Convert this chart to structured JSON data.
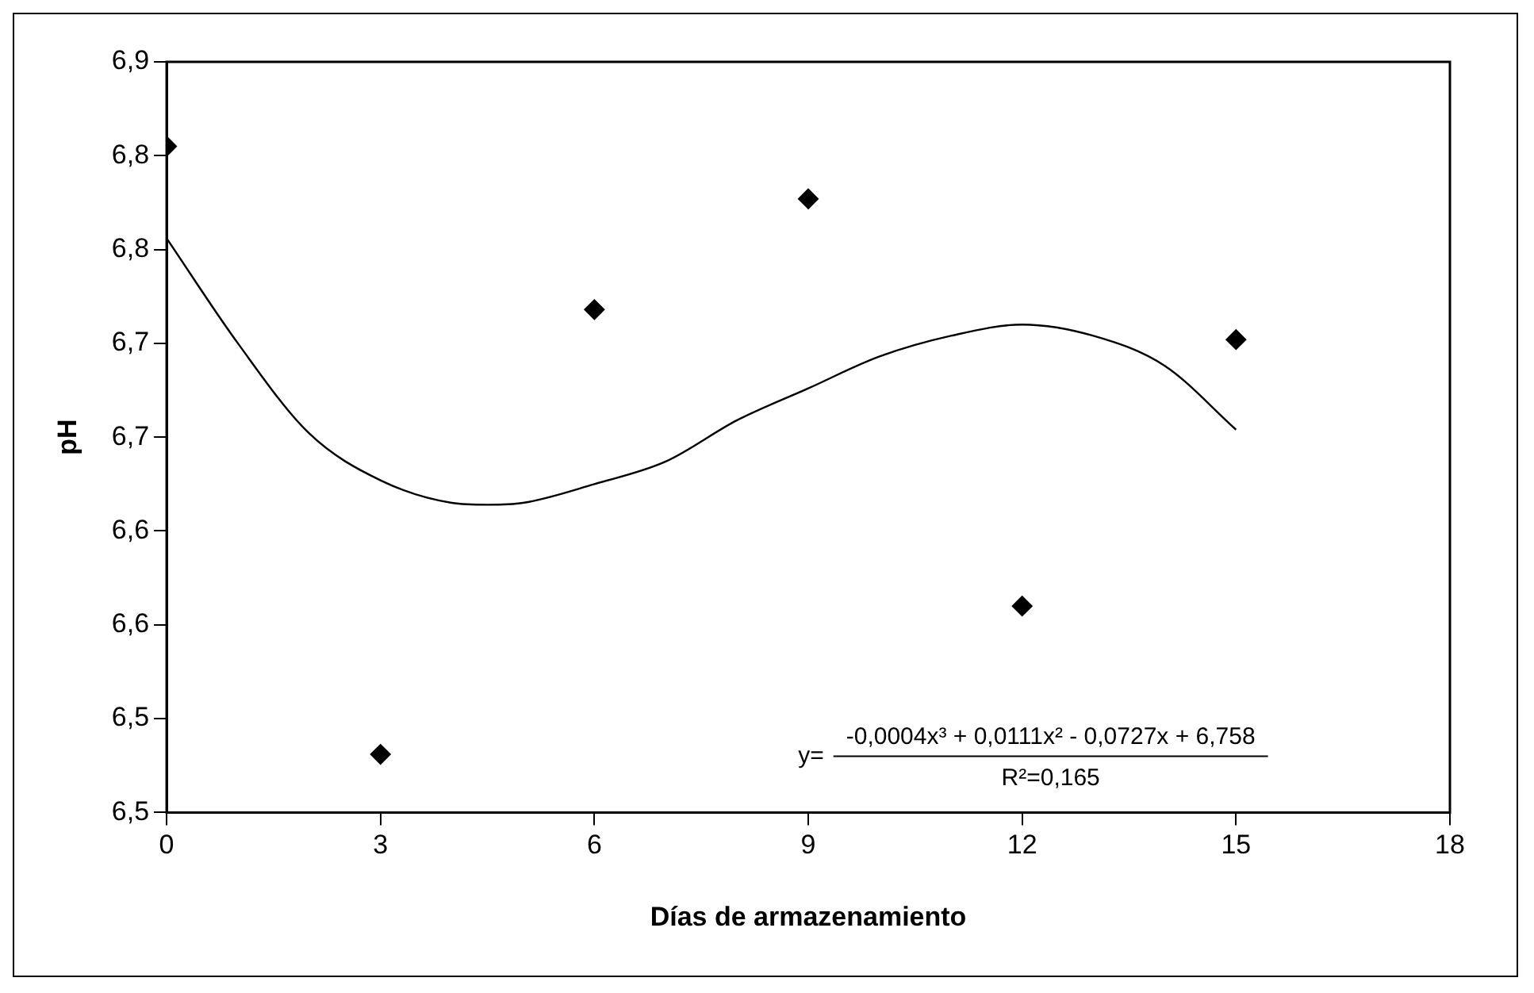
{
  "chart_data": {
    "type": "scatter",
    "xlabel": "Días de armazenamiento",
    "ylabel": "pH",
    "series": [
      {
        "color": "#000000",
        "x": [
          0,
          3,
          6,
          9,
          12,
          15
        ],
        "values": [
          6.855,
          6.531,
          6.768,
          6.827,
          6.61,
          6.752
        ]
      },
      {
        "type": "line",
        "marker": "none",
        "color": "#000000",
        "x": [
          0,
          1,
          2,
          3,
          4,
          4.5,
          5,
          6,
          7,
          8,
          9,
          10,
          11,
          12,
          13,
          14,
          15
        ],
        "values": [
          6.806,
          6.75,
          6.702,
          6.677,
          6.665,
          6.664,
          6.665,
          6.675,
          6.687,
          6.709,
          6.726,
          6.743,
          6.754,
          6.76,
          6.754,
          6.738,
          6.704
        ]
      }
    ],
    "xlim": [
      0,
      18
    ],
    "xticks": [
      0,
      3,
      6,
      9,
      12,
      15,
      18
    ],
    "ylim": [
      6.5,
      6.9
    ],
    "yticks": [
      {
        "value": 6.5,
        "label": "6,5"
      },
      {
        "value": 6.55,
        "label": "6,5"
      },
      {
        "value": 6.6,
        "label": "6,6"
      },
      {
        "value": 6.65,
        "label": "6,6"
      },
      {
        "value": 6.7,
        "label": "6,7"
      },
      {
        "value": 6.75,
        "label": "6,7"
      },
      {
        "value": 6.8,
        "label": "6,8"
      },
      {
        "value": 6.85,
        "label": "6,8"
      },
      {
        "value": 6.9,
        "label": "6,9"
      }
    ],
    "grid": false,
    "legend": false,
    "marker": "diamond",
    "annotations": [
      "y=",
      "-0,0004x³ + 0,0111x² - 0,0727x + 6,758",
      "R²=0,165"
    ]
  }
}
